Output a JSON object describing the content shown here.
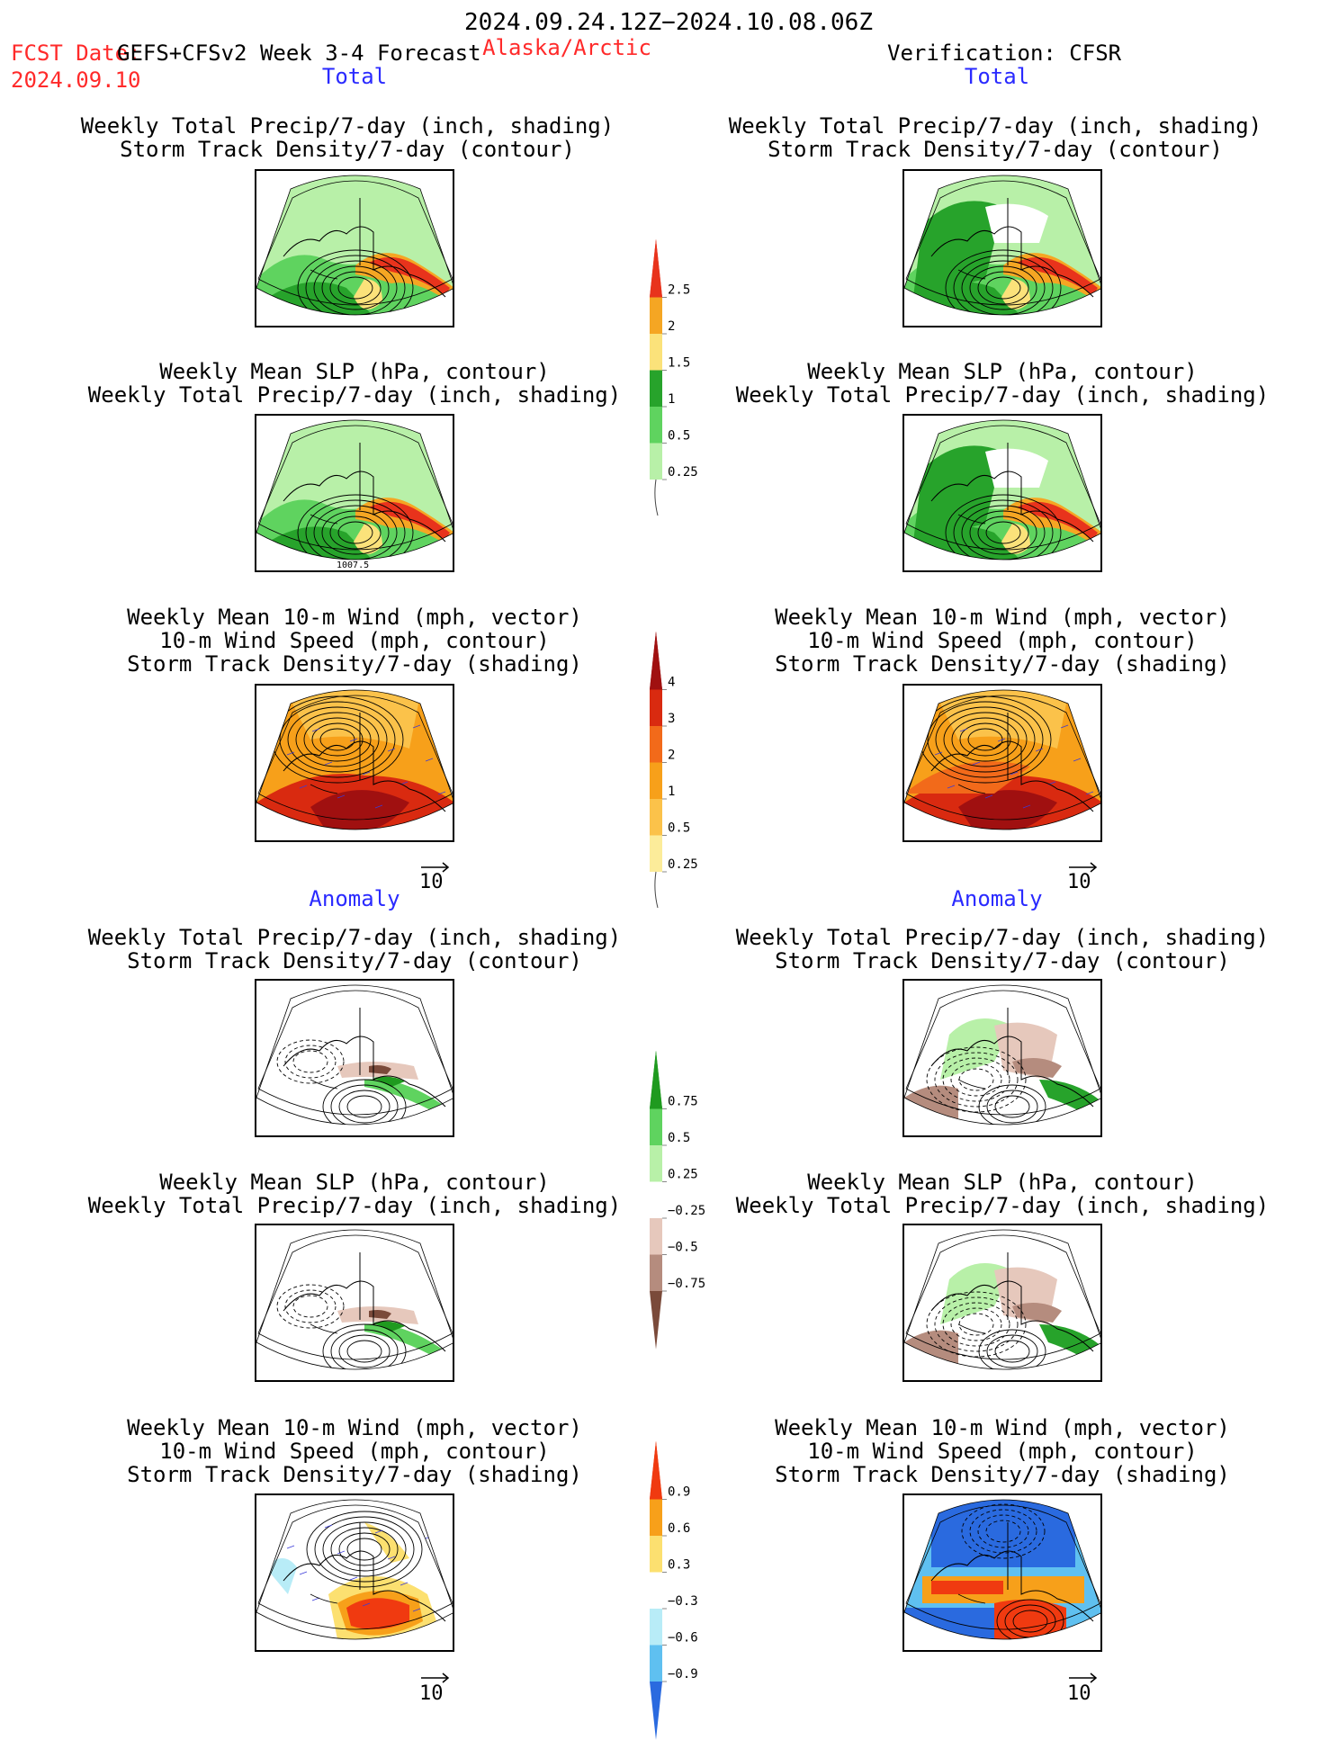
{
  "header": {
    "date_range": "2024.09.24.12Z−2024.10.08.06Z",
    "fcst_prefix": "FCST Date:",
    "model": "GEFS+CFSv2 Week 3-4 Forecast",
    "fcst_date": "2024.09.10",
    "region": "Alaska/Arctic",
    "verification": "Verification: CFSR"
  },
  "sections": {
    "total": "Total",
    "anomaly": "Anomaly"
  },
  "panel_titles": {
    "precip_storm": [
      "Weekly Total Precip/7-day (inch, shading)",
      "Storm Track Density/7-day (contour)"
    ],
    "slp_precip": [
      "Weekly Mean SLP (hPa, contour)",
      "Weekly Total Precip/7-day (inch, shading)"
    ],
    "wind": [
      "Weekly Mean 10-m Wind (mph, vector)",
      "10-m Wind Speed (mph, contour)",
      "Storm Track Density/7-day (shading)"
    ]
  },
  "map_labels": {
    "slp_contour": "1007.5"
  },
  "vector_scale": "10",
  "colorbars": {
    "precip_total": {
      "labels": [
        "2.5",
        "2",
        "1.5",
        "1",
        "0.5",
        "0.25"
      ],
      "colors": [
        "#e8331c",
        "#f5a623",
        "#fbe27a",
        "#27a32b",
        "#5fd35f",
        "#b8f0a8"
      ]
    },
    "storm_total": {
      "labels": [
        "4",
        "3",
        "2",
        "1",
        "0.5",
        "0.25"
      ],
      "colors": [
        "#a01010",
        "#d92a10",
        "#f26a1a",
        "#f7a01a",
        "#fbc24a",
        "#fcec9a"
      ]
    },
    "precip_anom": {
      "labels": [
        "0.75",
        "0.5",
        "0.25",
        "−0.25",
        "−0.5",
        "−0.75"
      ],
      "colors": [
        "#1f9a1f",
        "#5fd35f",
        "#b8f0a8",
        "#ffffff",
        "#e6c8bc",
        "#b58c7e",
        "#7a4a3a"
      ]
    },
    "storm_anom": {
      "labels": [
        "0.9",
        "0.6",
        "0.3",
        "−0.3",
        "−0.6",
        "−0.9"
      ],
      "colors": [
        "#f03a10",
        "#f7a01a",
        "#fce070",
        "#ffffff",
        "#b8ecf7",
        "#5fc0f0",
        "#2a6adf"
      ]
    }
  }
}
